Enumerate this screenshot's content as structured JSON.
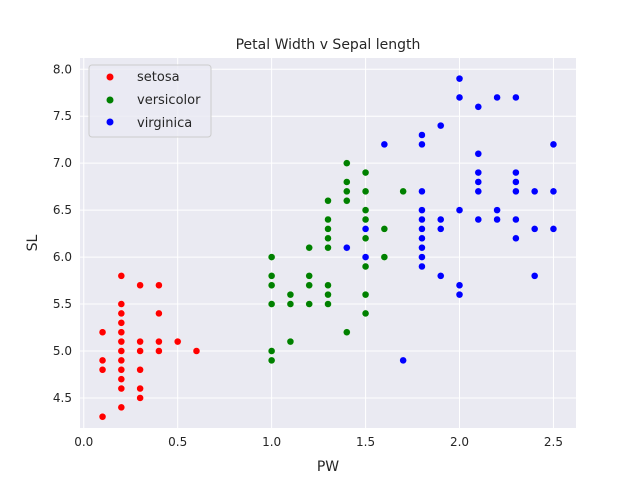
{
  "chart_data": {
    "type": "scatter",
    "title": "Petal Width v Sepal length",
    "xlabel": "PW",
    "ylabel": "SL",
    "xlim": [
      -0.02,
      2.62
    ],
    "ylim": [
      4.18,
      8.12
    ],
    "xticks": [
      0.0,
      0.5,
      1.0,
      1.5,
      2.0,
      2.5
    ],
    "xtick_labels": [
      "0.0",
      "0.5",
      "1.0",
      "1.5",
      "2.0",
      "2.5"
    ],
    "yticks": [
      4.5,
      5.0,
      5.5,
      6.0,
      6.5,
      7.0,
      7.5,
      8.0
    ],
    "ytick_labels": [
      "4.5",
      "5.0",
      "5.5",
      "6.0",
      "6.5",
      "7.0",
      "7.5",
      "8.0"
    ],
    "grid": true,
    "legend_position": "top-left",
    "series": [
      {
        "name": "setosa",
        "color": "#ff0000",
        "points": [
          [
            0.1,
            4.3
          ],
          [
            0.1,
            4.8
          ],
          [
            0.1,
            4.9
          ],
          [
            0.1,
            5.2
          ],
          [
            0.2,
            4.4
          ],
          [
            0.2,
            4.6
          ],
          [
            0.2,
            4.7
          ],
          [
            0.2,
            4.8
          ],
          [
            0.2,
            4.9
          ],
          [
            0.2,
            5.0
          ],
          [
            0.2,
            5.1
          ],
          [
            0.2,
            5.2
          ],
          [
            0.2,
            5.3
          ],
          [
            0.2,
            5.4
          ],
          [
            0.2,
            5.5
          ],
          [
            0.2,
            5.8
          ],
          [
            0.3,
            4.5
          ],
          [
            0.3,
            4.6
          ],
          [
            0.3,
            4.8
          ],
          [
            0.3,
            5.0
          ],
          [
            0.3,
            5.1
          ],
          [
            0.3,
            5.7
          ],
          [
            0.4,
            5.0
          ],
          [
            0.4,
            5.1
          ],
          [
            0.4,
            5.4
          ],
          [
            0.4,
            5.7
          ],
          [
            0.5,
            5.1
          ],
          [
            0.6,
            5.0
          ]
        ]
      },
      {
        "name": "versicolor",
        "color": "#008000",
        "points": [
          [
            1.0,
            4.9
          ],
          [
            1.0,
            5.0
          ],
          [
            1.0,
            5.5
          ],
          [
            1.0,
            5.7
          ],
          [
            1.0,
            5.8
          ],
          [
            1.0,
            6.0
          ],
          [
            1.1,
            5.1
          ],
          [
            1.1,
            5.5
          ],
          [
            1.1,
            5.6
          ],
          [
            1.2,
            5.5
          ],
          [
            1.2,
            5.7
          ],
          [
            1.2,
            5.8
          ],
          [
            1.2,
            6.1
          ],
          [
            1.3,
            5.5
          ],
          [
            1.3,
            5.6
          ],
          [
            1.3,
            5.7
          ],
          [
            1.3,
            6.1
          ],
          [
            1.3,
            6.2
          ],
          [
            1.3,
            6.3
          ],
          [
            1.3,
            6.4
          ],
          [
            1.3,
            6.6
          ],
          [
            1.4,
            5.2
          ],
          [
            1.4,
            6.1
          ],
          [
            1.4,
            6.6
          ],
          [
            1.4,
            6.7
          ],
          [
            1.4,
            6.8
          ],
          [
            1.4,
            7.0
          ],
          [
            1.5,
            5.4
          ],
          [
            1.5,
            5.6
          ],
          [
            1.5,
            5.9
          ],
          [
            1.5,
            6.0
          ],
          [
            1.5,
            6.2
          ],
          [
            1.5,
            6.3
          ],
          [
            1.5,
            6.4
          ],
          [
            1.5,
            6.5
          ],
          [
            1.5,
            6.7
          ],
          [
            1.5,
            6.9
          ],
          [
            1.6,
            6.0
          ],
          [
            1.6,
            6.3
          ],
          [
            1.7,
            6.7
          ]
        ]
      },
      {
        "name": "virginica",
        "color": "#0000ff",
        "points": [
          [
            1.4,
            6.1
          ],
          [
            1.5,
            6.0
          ],
          [
            1.5,
            6.3
          ],
          [
            1.6,
            7.2
          ],
          [
            1.7,
            4.9
          ],
          [
            1.8,
            5.9
          ],
          [
            1.8,
            6.0
          ],
          [
            1.8,
            6.1
          ],
          [
            1.8,
            6.2
          ],
          [
            1.8,
            6.3
          ],
          [
            1.8,
            6.4
          ],
          [
            1.8,
            6.5
          ],
          [
            1.8,
            6.7
          ],
          [
            1.8,
            7.2
          ],
          [
            1.8,
            7.3
          ],
          [
            1.9,
            5.8
          ],
          [
            1.9,
            6.3
          ],
          [
            1.9,
            6.4
          ],
          [
            1.9,
            7.4
          ],
          [
            2.0,
            5.6
          ],
          [
            2.0,
            5.7
          ],
          [
            2.0,
            6.5
          ],
          [
            2.0,
            7.7
          ],
          [
            2.0,
            7.9
          ],
          [
            2.1,
            6.4
          ],
          [
            2.1,
            6.7
          ],
          [
            2.1,
            6.8
          ],
          [
            2.1,
            6.9
          ],
          [
            2.1,
            7.1
          ],
          [
            2.1,
            7.6
          ],
          [
            2.2,
            6.4
          ],
          [
            2.2,
            6.5
          ],
          [
            2.2,
            7.7
          ],
          [
            2.3,
            6.2
          ],
          [
            2.3,
            6.4
          ],
          [
            2.3,
            6.7
          ],
          [
            2.3,
            6.8
          ],
          [
            2.3,
            6.9
          ],
          [
            2.3,
            7.7
          ],
          [
            2.4,
            5.8
          ],
          [
            2.4,
            6.3
          ],
          [
            2.4,
            6.7
          ],
          [
            2.5,
            6.3
          ],
          [
            2.5,
            6.7
          ],
          [
            2.5,
            7.2
          ]
        ]
      }
    ]
  }
}
